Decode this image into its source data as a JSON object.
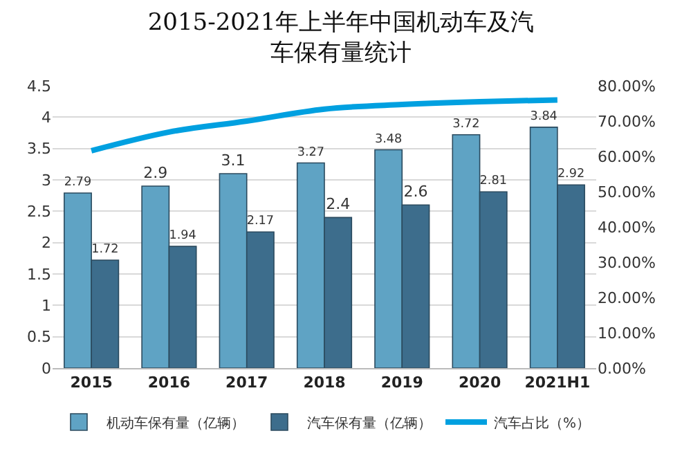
{
  "chart_data": {
    "type": "bar",
    "title": "2015-2021年上半年中国机动车及汽车保有量统计",
    "categories": [
      "2015",
      "2016",
      "2017",
      "2018",
      "2019",
      "2020",
      "2021H1"
    ],
    "series": [
      {
        "name": "机动车保有量（亿辆）",
        "color": "#5fa3c4",
        "values": [
          2.79,
          2.9,
          3.1,
          3.27,
          3.48,
          3.72,
          3.84
        ],
        "value_labels": [
          "2.79",
          "2.9",
          "3.1",
          "3.27",
          "3.48",
          "3.72",
          "3.84"
        ]
      },
      {
        "name": "汽车保有量（亿辆）",
        "color": "#3d6d8c",
        "values": [
          1.72,
          1.94,
          2.17,
          2.4,
          2.6,
          2.81,
          2.92
        ],
        "value_labels": [
          "1.72",
          "1.94",
          "2.17",
          "2.4",
          "2.6",
          "2.81",
          "2.92"
        ]
      },
      {
        "name": "汽车占比（%）",
        "type": "line",
        "axis": "y2",
        "color": "#00a0e0",
        "marker": "none",
        "values": [
          61.6,
          66.9,
          70,
          73.4,
          74.7,
          75.5,
          76
        ]
      }
    ],
    "ylim": [
      0,
      4.5
    ],
    "yticks": [
      0,
      0.5,
      1,
      1.5,
      2,
      2.5,
      3,
      3.5,
      4,
      4.5
    ],
    "y2lim": [
      0,
      80
    ],
    "y2ticks": [
      {
        "value": 0,
        "label": "0.00%"
      },
      {
        "value": 10,
        "label": "10.00%"
      },
      {
        "value": 20,
        "label": "20.00%"
      },
      {
        "value": 30,
        "label": "30.00%"
      },
      {
        "value": 40,
        "label": "40.00%"
      },
      {
        "value": 50,
        "label": "50.00%"
      },
      {
        "value": 60,
        "label": "60.00%"
      },
      {
        "value": 70,
        "label": "70.00%"
      },
      {
        "value": 80,
        "label": "80.00%"
      }
    ],
    "grid": "y",
    "legend": "bottom"
  }
}
